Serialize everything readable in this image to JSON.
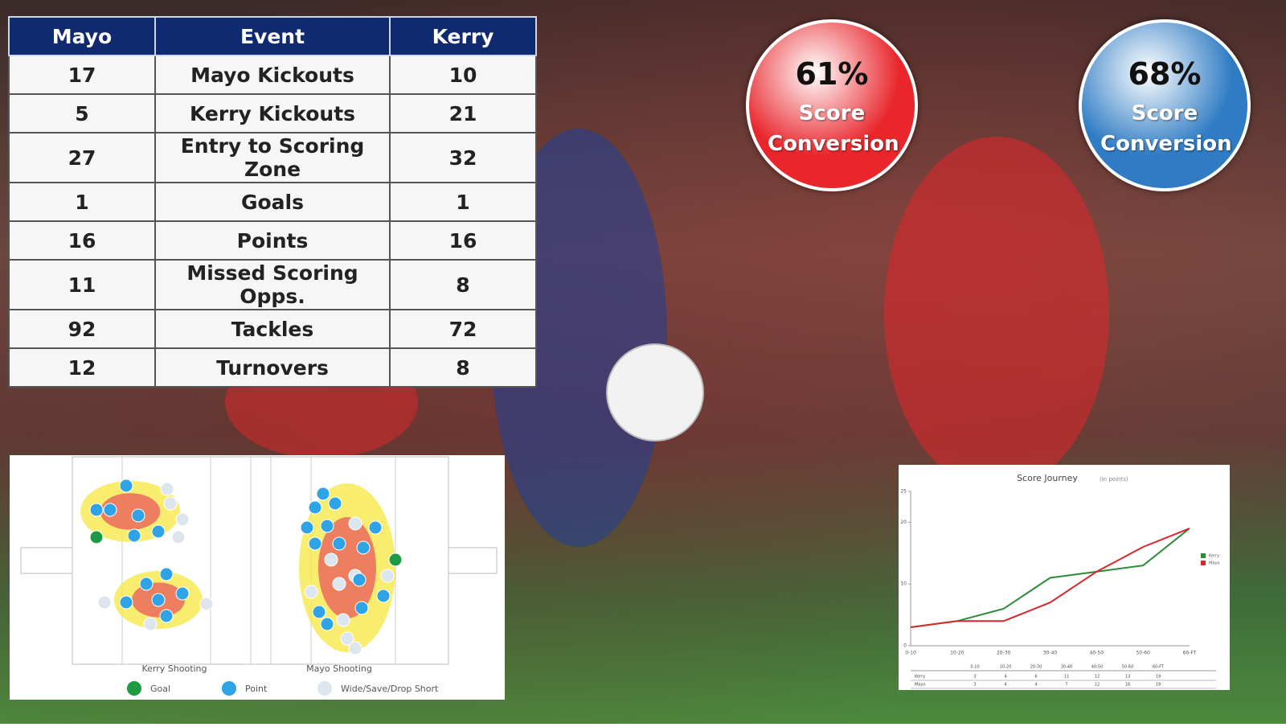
{
  "table": {
    "header": [
      "Mayo",
      "Event",
      "Kerry"
    ],
    "rows": [
      [
        17,
        "Mayo Kickouts",
        10
      ],
      [
        5,
        "Kerry Kickouts",
        21
      ],
      [
        27,
        "Entry to Scoring Zone",
        32
      ],
      [
        1,
        "Goals",
        1
      ],
      [
        16,
        "Points",
        16
      ],
      [
        11,
        "Missed Scoring Opps.",
        8
      ],
      [
        92,
        "Tackles",
        72
      ],
      [
        12,
        "Turnovers",
        8
      ]
    ]
  },
  "conversion": [
    {
      "value": "61%",
      "caption": "Score Conversion",
      "color": "#e8262c"
    },
    {
      "value": "68%",
      "caption": "Score Conversion",
      "color": "#2f7cc4"
    }
  ],
  "shooting": {
    "labels": [
      "Kerry Shooting",
      "Mayo Shooting"
    ],
    "legend": [
      {
        "name": "Goal",
        "color": "#1e9a45"
      },
      {
        "name": "Point",
        "color": "#2ea3e6"
      },
      {
        "name": "Wide/Save/Drop Short",
        "color": "#dde6ee"
      }
    ]
  },
  "chart_data": {
    "type": "line",
    "title": "Score Journey",
    "subtitle": "(in points)",
    "categories": [
      "0-10",
      "10-20",
      "20-30",
      "30-40",
      "40-50",
      "50-60",
      "60-FT"
    ],
    "series": [
      {
        "name": "Kerry",
        "color": "#2e8b3a",
        "values": [
          3,
          4,
          6,
          11,
          12,
          13,
          19
        ]
      },
      {
        "name": "Mayo",
        "color": "#d9262a",
        "values": [
          3,
          4,
          4,
          7,
          12,
          16,
          19
        ]
      }
    ],
    "ylim": [
      0,
      25
    ],
    "yticks": [
      0,
      10,
      20,
      25
    ],
    "grid": false
  }
}
